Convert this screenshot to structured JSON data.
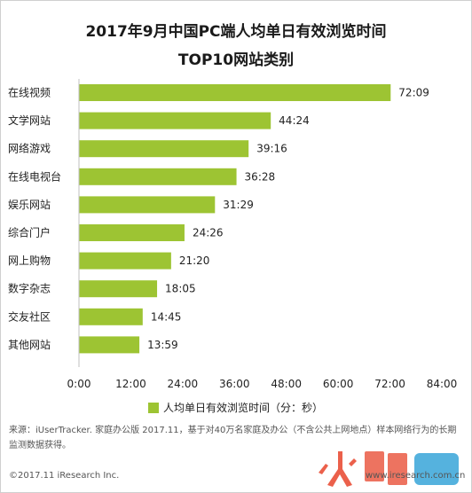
{
  "title_lines": [
    "2017年9月中国PC端人均单日有效浏览时间",
    "TOP10网站类别"
  ],
  "chart_data": {
    "type": "bar",
    "orientation": "horizontal",
    "categories": [
      "在线视频",
      "文学网站",
      "网络游戏",
      "在线电视台",
      "娱乐网站",
      "综合门户",
      "网上购物",
      "数字杂志",
      "交友社区",
      "其他网站"
    ],
    "values": [
      72.15,
      44.4,
      39.267,
      36.467,
      31.483,
      24.433,
      21.333,
      18.083,
      14.75,
      13.983
    ],
    "value_labels": [
      "72:09",
      "44:24",
      "39:16",
      "36:28",
      "31:29",
      "24:26",
      "21:20",
      "18:05",
      "14:45",
      "13:59"
    ],
    "x_ticks": [
      "0:00",
      "12:00",
      "24:00",
      "36:00",
      "48:00",
      "60:00",
      "72:00",
      "84:00"
    ],
    "xlim": [
      0,
      84
    ],
    "series": [
      {
        "name": "人均单日有效浏览时间（分：秒）",
        "values": [
          72.15,
          44.4,
          39.267,
          36.467,
          31.483,
          24.433,
          21.333,
          18.083,
          14.75,
          13.983
        ]
      }
    ],
    "grid": false,
    "legend": "bottom",
    "bar_color": "#9dc433"
  },
  "legend_label": "人均单日有效浏览时间（分：秒）",
  "source_note": "来源：iUserTracker. 家庭办公版 2017.11，基于对40万名家庭及办公（不含公共上网地点）样本网络行为的长期监测数据获得。",
  "copyright": "©2017.11 iResearch Inc.",
  "watermark_text": "www.iresearch.com.cn"
}
